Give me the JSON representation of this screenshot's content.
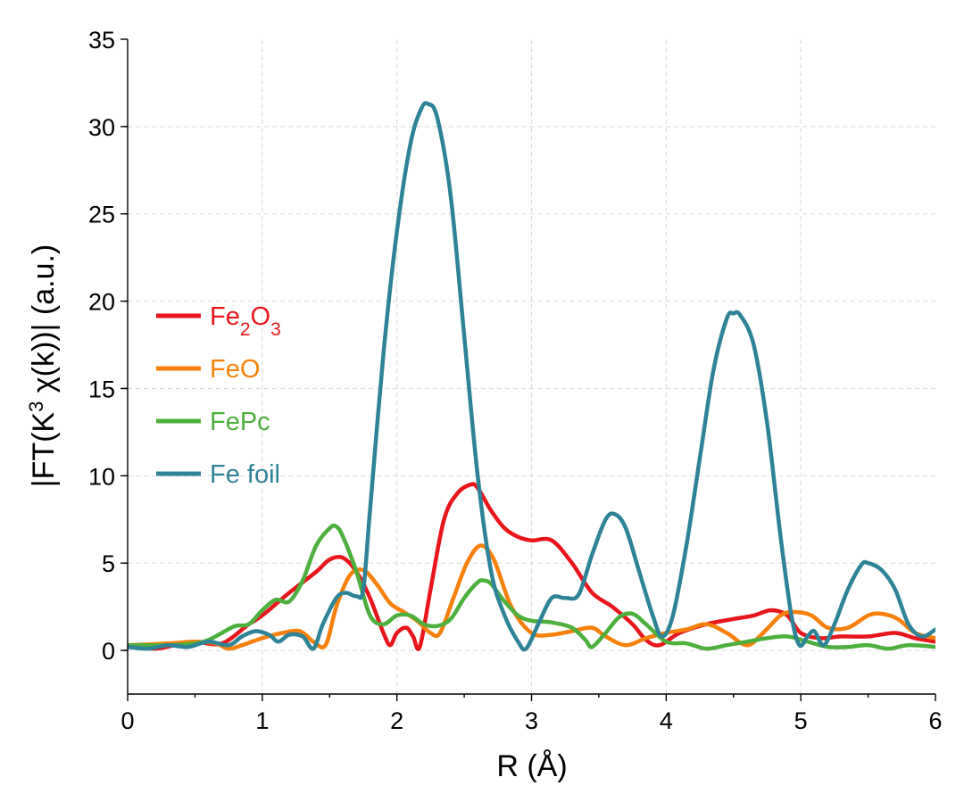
{
  "chart_data": {
    "type": "line",
    "title": "",
    "xlabel": "R (Å)",
    "ylabel_parts": [
      "|FT(K",
      "3",
      " χ(k))| (a.u.)"
    ],
    "xlim": [
      0,
      6
    ],
    "ylim": [
      -2.5,
      35
    ],
    "xticks": [
      0,
      1,
      2,
      3,
      4,
      5,
      6
    ],
    "xtick_labels": [
      "0",
      "1",
      "2",
      "3",
      "4",
      "5",
      "6"
    ],
    "yticks": [
      0,
      5,
      10,
      15,
      20,
      25,
      30,
      35
    ],
    "ytick_labels": [
      "0",
      "5",
      "10",
      "15",
      "20",
      "25",
      "30",
      "35"
    ],
    "grid": true,
    "legend_position": "center-left",
    "series": [
      {
        "name": "Fe2O3",
        "label_parts": [
          "Fe",
          "2",
          "O",
          "3"
        ],
        "color": "#e8161b",
        "x": [
          0,
          0.2,
          0.35,
          0.5,
          0.7,
          0.9,
          1.0,
          1.2,
          1.4,
          1.5,
          1.6,
          1.7,
          1.8,
          1.9,
          1.95,
          2.0,
          2.07,
          2.12,
          2.17,
          2.25,
          2.35,
          2.45,
          2.55,
          2.6,
          2.7,
          2.8,
          2.9,
          3.0,
          3.15,
          3.3,
          3.45,
          3.6,
          3.75,
          3.85,
          3.95,
          4.1,
          4.3,
          4.5,
          4.65,
          4.78,
          4.9,
          5.0,
          5.15,
          5.3,
          5.5,
          5.7,
          5.85,
          6.0
        ],
        "y": [
          0.3,
          0.1,
          0.3,
          0.5,
          0.4,
          1.5,
          2.0,
          3.3,
          4.5,
          5.2,
          5.3,
          4.5,
          3.0,
          1.0,
          0.3,
          1.0,
          1.3,
          0.8,
          0.2,
          3.5,
          7.5,
          9.0,
          9.5,
          9.3,
          8.0,
          7.0,
          6.5,
          6.3,
          6.3,
          5.0,
          3.3,
          2.5,
          1.5,
          0.6,
          0.3,
          1.0,
          1.5,
          1.8,
          2.0,
          2.3,
          2.0,
          1.0,
          0.7,
          0.8,
          0.8,
          1.0,
          0.7,
          0.5
        ]
      },
      {
        "name": "FeO",
        "label_parts": [
          "FeO"
        ],
        "color": "#f7800a",
        "x": [
          0,
          0.3,
          0.5,
          0.65,
          0.75,
          0.85,
          1.0,
          1.15,
          1.28,
          1.38,
          1.47,
          1.55,
          1.65,
          1.75,
          1.85,
          1.95,
          2.05,
          2.15,
          2.25,
          2.32,
          2.42,
          2.52,
          2.62,
          2.72,
          2.85,
          3.0,
          3.15,
          3.3,
          3.45,
          3.55,
          3.7,
          3.85,
          4.0,
          4.15,
          4.3,
          4.45,
          4.6,
          4.72,
          4.85,
          4.95,
          5.08,
          5.2,
          5.35,
          5.5,
          5.6,
          5.72,
          5.85,
          6.0
        ],
        "y": [
          0.3,
          0.4,
          0.5,
          0.4,
          0.1,
          0.3,
          0.7,
          1.0,
          1.1,
          0.5,
          0.3,
          2.5,
          4.3,
          4.6,
          3.8,
          2.7,
          2.2,
          1.7,
          1.0,
          1.0,
          3.0,
          5.0,
          6.0,
          5.2,
          2.5,
          1.0,
          0.9,
          1.1,
          1.3,
          0.8,
          0.3,
          0.7,
          1.0,
          1.2,
          1.5,
          1.0,
          0.3,
          1.0,
          2.0,
          2.2,
          2.0,
          1.3,
          1.3,
          2.0,
          2.1,
          1.8,
          1.0,
          0.7
        ]
      },
      {
        "name": "FePc",
        "label_parts": [
          "FePc"
        ],
        "color": "#4daf3d",
        "x": [
          0,
          0.3,
          0.5,
          0.6,
          0.7,
          0.8,
          0.9,
          1.0,
          1.1,
          1.2,
          1.3,
          1.4,
          1.5,
          1.55,
          1.6,
          1.7,
          1.8,
          1.9,
          2.0,
          2.1,
          2.2,
          2.3,
          2.4,
          2.5,
          2.6,
          2.65,
          2.7,
          2.8,
          2.9,
          3.0,
          3.15,
          3.3,
          3.4,
          3.45,
          3.55,
          3.65,
          3.75,
          3.85,
          4.0,
          4.15,
          4.3,
          4.45,
          4.6,
          4.75,
          4.9,
          5.05,
          5.2,
          5.35,
          5.5,
          5.65,
          5.8,
          6.0
        ],
        "y": [
          0.3,
          0.3,
          0.4,
          0.6,
          1.0,
          1.4,
          1.5,
          2.3,
          2.9,
          2.8,
          4.0,
          6.0,
          7.0,
          7.1,
          6.5,
          4.5,
          2.0,
          1.5,
          2.0,
          2.0,
          1.5,
          1.4,
          1.8,
          3.0,
          3.9,
          4.0,
          3.8,
          2.8,
          2.0,
          1.7,
          1.6,
          1.3,
          0.6,
          0.2,
          1.0,
          1.9,
          2.1,
          1.5,
          0.5,
          0.4,
          0.1,
          0.3,
          0.5,
          0.7,
          0.8,
          0.5,
          0.2,
          0.2,
          0.3,
          0.1,
          0.3,
          0.2
        ]
      },
      {
        "name": "Fe foil",
        "label_parts": [
          "Fe foil"
        ],
        "color": "#2e8398",
        "x": [
          0,
          0.15,
          0.3,
          0.45,
          0.6,
          0.75,
          0.85,
          0.95,
          1.05,
          1.12,
          1.2,
          1.3,
          1.38,
          1.45,
          1.55,
          1.62,
          1.7,
          1.75,
          1.8,
          1.9,
          2.0,
          2.1,
          2.18,
          2.23,
          2.3,
          2.4,
          2.5,
          2.6,
          2.7,
          2.8,
          2.9,
          2.96,
          3.05,
          3.15,
          3.25,
          3.35,
          3.45,
          3.55,
          3.62,
          3.7,
          3.8,
          3.9,
          3.97,
          4.05,
          4.15,
          4.25,
          4.35,
          4.45,
          4.5,
          4.55,
          4.65,
          4.75,
          4.85,
          4.93,
          4.99,
          5.05,
          5.1,
          5.17,
          5.25,
          5.35,
          5.45,
          5.5,
          5.6,
          5.7,
          5.8,
          5.9,
          6.0
        ],
        "y": [
          0.2,
          0.1,
          0.3,
          0.2,
          0.5,
          0.3,
          0.8,
          1.1,
          0.9,
          0.5,
          0.9,
          0.8,
          0.1,
          1.5,
          3.0,
          3.3,
          3.1,
          3.5,
          8.0,
          17.0,
          24.0,
          29.0,
          31.0,
          31.3,
          30.5,
          26.0,
          18.0,
          10.0,
          4.5,
          2.0,
          0.5,
          0.1,
          1.5,
          3.0,
          3.0,
          3.2,
          5.5,
          7.5,
          7.8,
          7.0,
          4.5,
          2.0,
          0.8,
          2.0,
          6.0,
          11.0,
          16.0,
          19.0,
          19.3,
          19.2,
          17.5,
          13.0,
          6.5,
          2.0,
          0.3,
          0.8,
          1.1,
          0.3,
          1.5,
          3.5,
          4.9,
          5.0,
          4.6,
          3.5,
          1.5,
          0.8,
          1.2
        ]
      }
    ]
  }
}
